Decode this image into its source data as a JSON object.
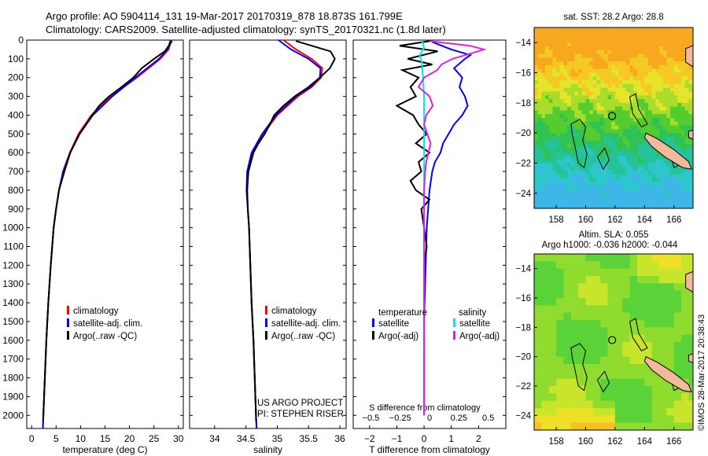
{
  "header": {
    "line1": "Argo profile: AO 5904114_131 19-Mar-2017 20170319_878 18.873S 161.799E",
    "line2": "Climatology: CARS2009. Satellite-adjusted climatology: synTS_20170321.nc (1.8d later)"
  },
  "credit": "©IMOS 28-Mar-2017 20:38:43",
  "project": [
    "US ARGO PROJECT",
    "PI: STEPHEN RISER"
  ],
  "colors": {
    "climatology": "#ff0000",
    "satellite": "#0000ff",
    "argo": "#000000",
    "sat_salinity": "#00e5e5",
    "argo_salinity": "#e020e0",
    "land": "#f4b89a"
  },
  "chart_data": [
    {
      "type": "line",
      "xlabel": "temperature (deg C)",
      "ylabel": "",
      "xlim": [
        -1,
        31
      ],
      "ylim": [
        2070,
        0
      ],
      "xticks": [
        0,
        5,
        10,
        15,
        20,
        25,
        30
      ],
      "yticks": [
        0,
        100,
        200,
        300,
        400,
        500,
        600,
        700,
        800,
        900,
        1000,
        1100,
        1200,
        1300,
        1400,
        1500,
        1600,
        1700,
        1800,
        1900,
        2000
      ],
      "legend": [
        "climatology",
        "satellite-adj. clim.",
        "Argo(..raw -QC)"
      ],
      "series": [
        {
          "name": "climatology",
          "color": "#ff0000",
          "depth": [
            0,
            50,
            100,
            200,
            300,
            400,
            500,
            600,
            700,
            800,
            900,
            1000,
            1200,
            1400,
            1600,
            1800,
            2000,
            2070
          ],
          "values": [
            28.6,
            28.0,
            26.3,
            21.5,
            16.2,
            12.2,
            9.6,
            7.8,
            6.4,
            5.6,
            5.0,
            4.5,
            3.9,
            3.4,
            3.0,
            2.7,
            2.4,
            2.3
          ]
        },
        {
          "name": "satellite-adj. clim.",
          "color": "#0000ff",
          "depth": [
            0,
            50,
            100,
            200,
            300,
            400,
            500,
            600,
            700,
            800,
            900,
            1000,
            1200,
            1400,
            1600,
            1800,
            2000,
            2070
          ],
          "values": [
            28.4,
            27.8,
            26.0,
            21.2,
            16.5,
            12.5,
            9.8,
            7.9,
            6.5,
            5.6,
            5.0,
            4.5,
            3.9,
            3.4,
            3.0,
            2.7,
            2.4,
            2.3
          ]
        },
        {
          "name": "Argo(..raw -QC)",
          "color": "#000000",
          "depth": [
            5,
            20,
            60,
            100,
            150,
            200,
            250,
            300,
            350,
            400,
            500,
            600,
            700,
            800,
            900,
            1000,
            1200,
            1400,
            1600,
            1800,
            2000,
            2030
          ],
          "values": [
            28.7,
            28.3,
            27.2,
            25.0,
            22.5,
            20.8,
            18.4,
            15.8,
            13.8,
            12.4,
            9.8,
            7.9,
            6.7,
            5.6,
            5.0,
            4.5,
            3.9,
            3.4,
            3.0,
            2.7,
            2.4,
            2.35
          ]
        }
      ]
    },
    {
      "type": "line",
      "xlabel": "salinity",
      "ylabel": "",
      "xlim": [
        33.6,
        36.1
      ],
      "ylim": [
        2070,
        0
      ],
      "xticks": [
        34,
        34.5,
        35,
        35.5,
        36
      ],
      "legend": [
        "climatology",
        "satellite-adj. clim.",
        "Argo(..raw -QC)"
      ],
      "series": [
        {
          "name": "climatology",
          "color": "#ff0000",
          "depth": [
            0,
            50,
            100,
            150,
            200,
            250,
            300,
            400,
            500,
            600,
            700,
            800,
            900,
            1000,
            1200,
            1400,
            1600,
            1800,
            2000,
            2070
          ],
          "values": [
            35.1,
            35.3,
            35.55,
            35.72,
            35.7,
            35.55,
            35.33,
            35.0,
            34.78,
            34.6,
            34.53,
            34.52,
            34.53,
            34.55,
            34.57,
            34.59,
            34.62,
            34.64,
            34.66,
            34.67
          ]
        },
        {
          "name": "satellite-adj. clim.",
          "color": "#0000ff",
          "depth": [
            0,
            50,
            100,
            150,
            200,
            250,
            300,
            400,
            500,
            600,
            700,
            800,
            900,
            1000,
            1200,
            1400,
            1600,
            1800,
            2000,
            2070
          ],
          "values": [
            35.02,
            35.22,
            35.5,
            35.69,
            35.68,
            35.53,
            35.3,
            34.98,
            34.76,
            34.59,
            34.52,
            34.51,
            34.53,
            34.55,
            34.57,
            34.59,
            34.62,
            34.64,
            34.66,
            34.67
          ]
        },
        {
          "name": "Argo(..raw -QC)",
          "color": "#000000",
          "depth": [
            5,
            30,
            60,
            100,
            150,
            200,
            250,
            300,
            350,
            400,
            450,
            500,
            550,
            600,
            700,
            800,
            900,
            1000,
            1200,
            1400,
            1600,
            1800,
            2000,
            2030
          ],
          "values": [
            35.3,
            35.55,
            35.85,
            35.92,
            35.84,
            35.68,
            35.5,
            35.28,
            35.1,
            34.95,
            34.88,
            34.8,
            34.7,
            34.62,
            34.54,
            34.52,
            34.53,
            34.55,
            34.57,
            34.59,
            34.62,
            34.64,
            34.66,
            34.66
          ]
        }
      ]
    },
    {
      "type": "line",
      "xlabel": "T difference from climatology",
      "xlabel_top": "S difference from climatology",
      "ylabel": "",
      "xlim": [
        -2.6,
        3.0
      ],
      "ylim": [
        2070,
        0
      ],
      "xticks": [
        -2,
        -1,
        0,
        1,
        2
      ],
      "xticks_top": [
        -0.5,
        -0.25,
        0,
        0.25,
        0.5
      ],
      "legend_title_left": "temperature",
      "legend_title_right": "salinity",
      "legend": [
        "satellite",
        "Argo(-adj)",
        "satellite",
        "Argo(-adj)"
      ],
      "series": [
        {
          "name": "satellite",
          "group": "temperature",
          "color": "#0000ff",
          "depth": [
            10,
            50,
            80,
            100,
            150,
            200,
            250,
            300,
            350,
            400,
            450,
            500,
            550,
            600,
            650,
            700,
            800,
            1000,
            1500,
            2000
          ],
          "values": [
            0.3,
            1.0,
            1.7,
            1.5,
            1.1,
            1.4,
            1.3,
            1.5,
            1.6,
            1.4,
            1.1,
            0.9,
            0.7,
            0.6,
            0.4,
            0.3,
            0.2,
            0.1,
            0.0,
            0.0
          ]
        },
        {
          "name": "Argo(-adj)",
          "group": "temperature",
          "color": "#000000",
          "depth": [
            5,
            30,
            60,
            100,
            130,
            160,
            200,
            250,
            300,
            350,
            400,
            450,
            500,
            550,
            600,
            650,
            700,
            750,
            800,
            850,
            900,
            1000,
            1100,
            1200,
            1400,
            1600,
            1800,
            2000
          ],
          "values": [
            0.2,
            -0.9,
            0.5,
            -0.6,
            0.3,
            -0.8,
            -0.2,
            -0.5,
            -0.3,
            -1.0,
            -0.4,
            -0.2,
            0.1,
            -0.3,
            0.2,
            -0.2,
            -0.1,
            -0.5,
            -0.3,
            0.2,
            -0.1,
            0.0,
            0.1,
            0.0,
            0.0,
            0.0,
            0.0,
            0.0
          ]
        },
        {
          "name": "satellite",
          "group": "salinity",
          "color": "#00e5e5",
          "depth": [
            5,
            40,
            80,
            120,
            200,
            300,
            500,
            800,
            1200,
            1600,
            2000
          ],
          "values": [
            -0.02,
            0.0,
            -0.04,
            -0.02,
            -0.01,
            0.0,
            0.0,
            0.0,
            0.0,
            0.0,
            0.0
          ]
        },
        {
          "name": "Argo(-adj)",
          "group": "salinity",
          "color": "#e020e0",
          "depth": [
            5,
            30,
            50,
            80,
            100,
            130,
            160,
            200,
            250,
            300,
            350,
            400,
            450,
            500,
            550,
            600,
            650,
            700,
            800,
            900,
            1000,
            1200,
            1400,
            1600,
            1800,
            2000
          ],
          "values": [
            0.05,
            0.42,
            0.55,
            0.38,
            0.26,
            0.16,
            0.12,
            0.0,
            -0.05,
            0.05,
            0.08,
            0.02,
            0.0,
            0.03,
            0.06,
            0.04,
            0.02,
            0.01,
            0.0,
            0.0,
            0.0,
            0.0,
            0.0,
            0.0,
            0.0,
            0.0
          ]
        }
      ]
    },
    {
      "type": "heatmap",
      "title": "sat. SST: 28.2 Argo: 28.8",
      "xlim": [
        156.5,
        167.3
      ],
      "ylim": [
        -25,
        -13
      ],
      "xticks": [
        158,
        160,
        162,
        164,
        166
      ],
      "yticks": [
        -14,
        -16,
        -18,
        -20,
        -22,
        -24
      ],
      "marker": {
        "lon": 161.8,
        "lat": -18.87
      }
    },
    {
      "type": "heatmap",
      "title": "Altim. SLA: 0.055",
      "subtitle": "Argo h1000: -0.036 h2000: -0.044",
      "xlim": [
        156.5,
        167.3
      ],
      "ylim": [
        -25,
        -13
      ],
      "xticks": [
        158,
        160,
        162,
        164,
        166
      ],
      "yticks": [
        -14,
        -16,
        -18,
        -20,
        -22,
        -24
      ],
      "marker": {
        "lon": 161.8,
        "lat": -18.87
      }
    }
  ]
}
